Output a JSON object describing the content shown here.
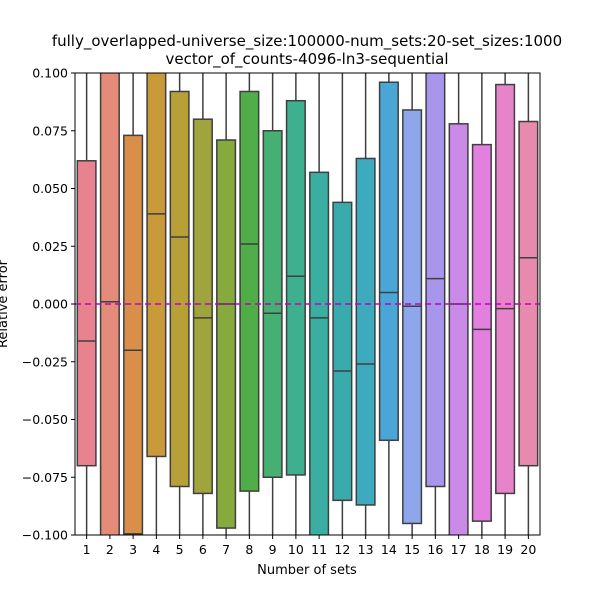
{
  "chart_data": {
    "type": "box",
    "title_line1": "fully_overlapped-universe_size:100000-num_sets:20-set_sizes:1000",
    "title_line2": "vector_of_counts-4096-ln3-sequential",
    "xlabel": "Number of sets",
    "ylabel": "Relative error",
    "ylim": [
      -0.1,
      0.1
    ],
    "yticks": [
      -0.1,
      -0.075,
      -0.05,
      -0.025,
      0.0,
      0.025,
      0.05,
      0.075,
      0.1
    ],
    "ytick_labels": [
      "−0.100",
      "−0.075",
      "−0.050",
      "−0.025",
      "0.000",
      "0.025",
      "0.050",
      "0.075",
      "0.100"
    ],
    "reference_line": {
      "y": 0.0,
      "color": "#bf00bf",
      "style": "dashed"
    },
    "categories": [
      "1",
      "2",
      "3",
      "4",
      "5",
      "6",
      "7",
      "8",
      "9",
      "10",
      "11",
      "12",
      "13",
      "14",
      "15",
      "16",
      "17",
      "18",
      "19",
      "20"
    ],
    "boxes": [
      {
        "q1": -0.07,
        "median": -0.016,
        "q3": 0.062,
        "color": "#e8828e"
      },
      {
        "q1": -0.11,
        "median": 0.001,
        "q3": 0.11,
        "color": "#e58b7a"
      },
      {
        "q1": -0.0995,
        "median": -0.02,
        "q3": 0.073,
        "color": "#d98f4a"
      },
      {
        "q1": -0.066,
        "median": 0.039,
        "q3": 0.11,
        "color": "#c89a3a"
      },
      {
        "q1": -0.079,
        "median": 0.029,
        "q3": 0.092,
        "color": "#b8a039"
      },
      {
        "q1": -0.082,
        "median": -0.006,
        "q3": 0.08,
        "color": "#a0a43c"
      },
      {
        "q1": -0.097,
        "median": 0.0,
        "q3": 0.071,
        "color": "#87aa3e"
      },
      {
        "q1": -0.081,
        "median": 0.026,
        "q3": 0.092,
        "color": "#4fae47"
      },
      {
        "q1": -0.075,
        "median": -0.004,
        "q3": 0.075,
        "color": "#45b072"
      },
      {
        "q1": -0.074,
        "median": 0.012,
        "q3": 0.088,
        "color": "#3fb08f"
      },
      {
        "q1": -0.11,
        "median": -0.006,
        "q3": 0.057,
        "color": "#3aaea1"
      },
      {
        "q1": -0.085,
        "median": -0.029,
        "q3": 0.044,
        "color": "#3aabad"
      },
      {
        "q1": -0.087,
        "median": -0.026,
        "q3": 0.063,
        "color": "#3eaabd"
      },
      {
        "q1": -0.059,
        "median": 0.005,
        "q3": 0.096,
        "color": "#4aa6d6"
      },
      {
        "q1": -0.095,
        "median": -0.001,
        "q3": 0.084,
        "color": "#8ea7ea"
      },
      {
        "q1": -0.079,
        "median": 0.011,
        "q3": 0.11,
        "color": "#a895ec"
      },
      {
        "q1": -0.11,
        "median": 0.0,
        "q3": 0.078,
        "color": "#c98ae8"
      },
      {
        "q1": -0.094,
        "median": -0.011,
        "q3": 0.069,
        "color": "#e27fdf"
      },
      {
        "q1": -0.082,
        "median": -0.002,
        "q3": 0.095,
        "color": "#e783c8"
      },
      {
        "q1": -0.07,
        "median": 0.02,
        "q3": 0.079,
        "color": "#e889ae"
      }
    ]
  }
}
